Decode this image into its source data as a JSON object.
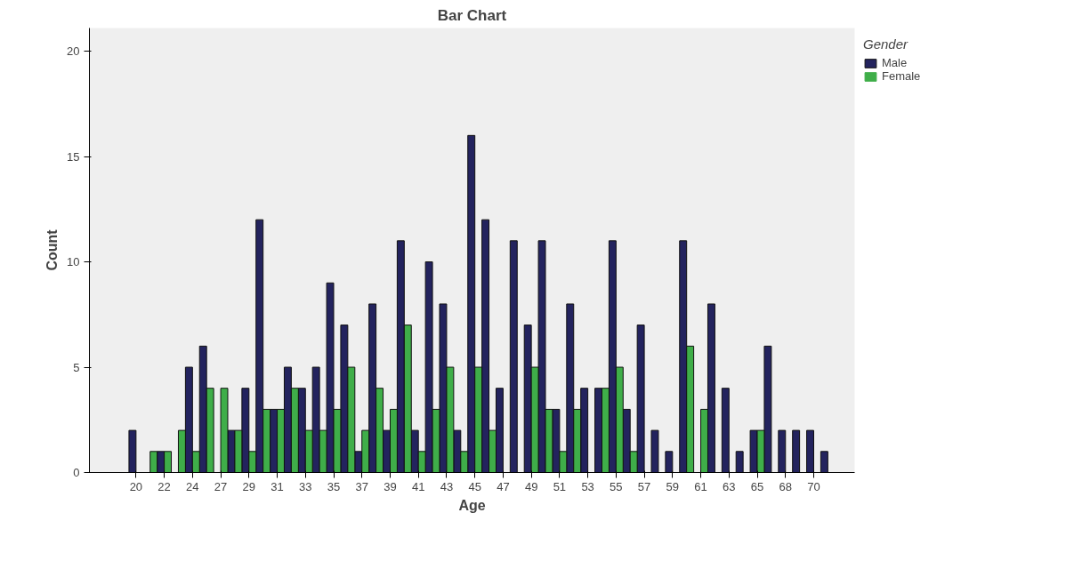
{
  "chart_data": {
    "type": "bar",
    "title": "Bar Chart",
    "xlabel": "Age",
    "ylabel": "Count",
    "legend_title": "Gender",
    "categories": [
      "20",
      null,
      "22",
      null,
      "24",
      null,
      "27",
      null,
      "29",
      null,
      "31",
      null,
      "33",
      null,
      "35",
      null,
      "37",
      null,
      "39",
      null,
      "41",
      null,
      "43",
      null,
      "45",
      null,
      "47",
      null,
      "49",
      null,
      "51",
      null,
      "53",
      null,
      "55",
      null,
      "57",
      null,
      "59",
      null,
      "61",
      null,
      "63",
      null,
      "65",
      null,
      "68",
      null,
      "70",
      null
    ],
    "series": [
      {
        "name": "Male",
        "color": "#23235e",
        "values": [
          2,
          0,
          1,
          0,
          5,
          6,
          0,
          2,
          4,
          12,
          3,
          5,
          4,
          5,
          9,
          7,
          1,
          8,
          2,
          11,
          2,
          10,
          8,
          2,
          16,
          12,
          4,
          11,
          7,
          11,
          3,
          8,
          4,
          4,
          11,
          3,
          7,
          2,
          1,
          11,
          0,
          8,
          4,
          1,
          2,
          6,
          2,
          2,
          2,
          1
        ]
      },
      {
        "name": "Female",
        "color": "#3fae49",
        "values": [
          0,
          1,
          1,
          2,
          1,
          4,
          4,
          2,
          1,
          3,
          3,
          4,
          2,
          2,
          3,
          5,
          2,
          4,
          3,
          7,
          1,
          3,
          5,
          1,
          5,
          2,
          0,
          0,
          5,
          3,
          1,
          3,
          0,
          4,
          5,
          1,
          0,
          0,
          0,
          6,
          3,
          0,
          0,
          0,
          2,
          0,
          0,
          0,
          0,
          0
        ]
      }
    ],
    "ylim": [
      0,
      21.1
    ],
    "yticks": [
      0,
      5,
      10,
      15,
      20
    ],
    "grid": false,
    "legend": "top right"
  }
}
